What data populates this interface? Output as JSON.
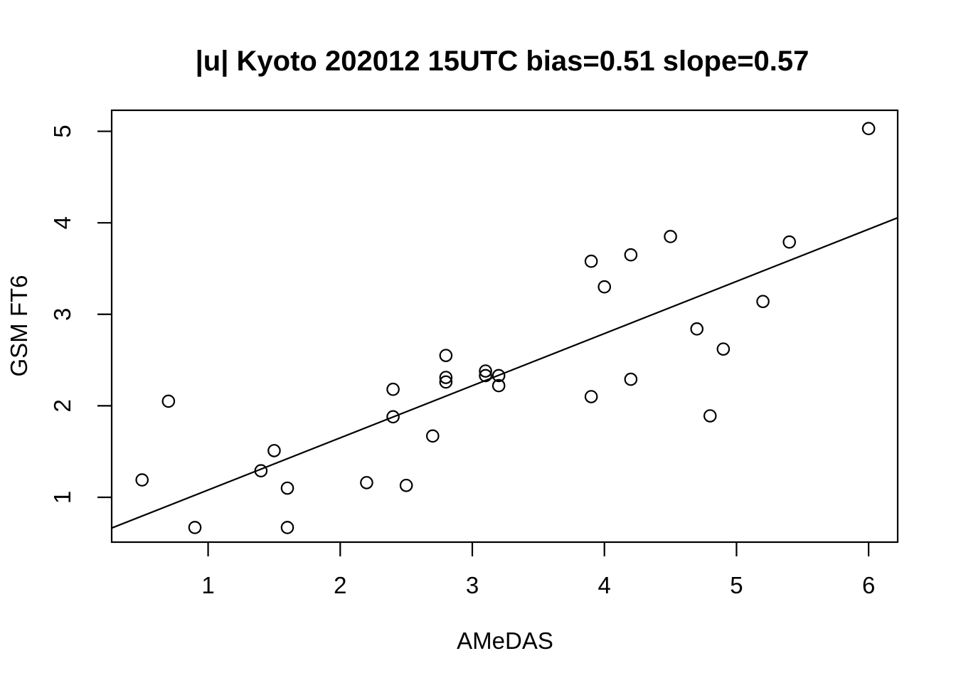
{
  "figure": {
    "background_color": "#ffffff",
    "foreground_color": "#000000"
  },
  "chart_data": {
    "type": "scatter",
    "title": "|u| Kyoto 202012 15UTC bias=0.51 slope=0.57",
    "xlabel": "AMeDAS",
    "ylabel": "GSM FT6",
    "xlim": [
      0.27,
      6.22
    ],
    "ylim": [
      0.51,
      5.23
    ],
    "x_ticks": [
      1,
      2,
      3,
      4,
      5,
      6
    ],
    "y_ticks": [
      1,
      2,
      3,
      4,
      5
    ],
    "grid": false,
    "legend": "none",
    "marker": "open-circle",
    "marker_color": "#000000",
    "line_color": "#000000",
    "points": [
      [
        0.5,
        1.19
      ],
      [
        0.7,
        2.05
      ],
      [
        0.9,
        0.67
      ],
      [
        1.4,
        1.29
      ],
      [
        1.5,
        1.51
      ],
      [
        1.6,
        1.1
      ],
      [
        1.6,
        0.67
      ],
      [
        2.2,
        1.16
      ],
      [
        2.4,
        2.18
      ],
      [
        2.4,
        1.88
      ],
      [
        2.5,
        1.13
      ],
      [
        2.7,
        1.67
      ],
      [
        2.8,
        2.55
      ],
      [
        2.8,
        2.31
      ],
      [
        2.8,
        2.26
      ],
      [
        3.1,
        2.38
      ],
      [
        3.1,
        2.33
      ],
      [
        3.2,
        2.33
      ],
      [
        3.2,
        2.22
      ],
      [
        3.9,
        3.58
      ],
      [
        3.9,
        2.1
      ],
      [
        4.0,
        3.3
      ],
      [
        4.2,
        3.65
      ],
      [
        4.2,
        2.29
      ],
      [
        4.5,
        3.85
      ],
      [
        4.7,
        2.84
      ],
      [
        4.8,
        1.89
      ],
      [
        4.9,
        2.62
      ],
      [
        5.2,
        3.14
      ],
      [
        5.4,
        3.79
      ],
      [
        6.0,
        5.03
      ]
    ],
    "fit_line": {
      "intercept": 0.51,
      "slope": 0.57,
      "bias_label": "bias=0.51",
      "slope_label": "slope=0.57"
    }
  }
}
